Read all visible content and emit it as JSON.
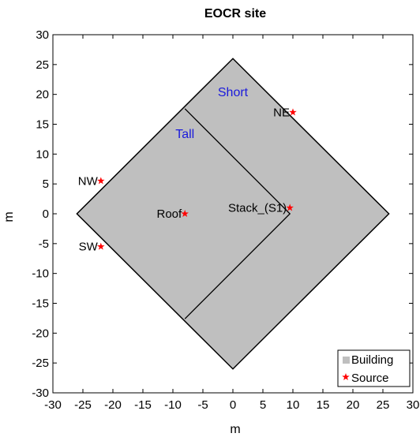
{
  "chart_data": {
    "type": "scatter",
    "title": "EOCR site",
    "xlabel": "m",
    "ylabel": "m",
    "xlim": [
      -30,
      30
    ],
    "ylim": [
      -30,
      30
    ],
    "xticks": [
      -30,
      -25,
      -20,
      -15,
      -10,
      -5,
      0,
      5,
      10,
      15,
      20,
      25,
      30
    ],
    "yticks": [
      -30,
      -25,
      -20,
      -15,
      -10,
      -5,
      0,
      5,
      10,
      15,
      20,
      25,
      30
    ],
    "grid": false,
    "building": {
      "outline": [
        [
          0,
          26
        ],
        [
          26,
          0
        ],
        [
          0,
          -26
        ],
        [
          -26,
          0
        ]
      ],
      "divider": [
        [
          -8,
          17.6
        ],
        [
          9.5,
          0
        ],
        [
          -8,
          -17.6
        ]
      ],
      "zones": [
        {
          "label": "Short",
          "x": 0,
          "y": 20.5
        },
        {
          "label": "Tall",
          "x": -8,
          "y": 13.5
        }
      ]
    },
    "sources": [
      {
        "label": "NE",
        "x": 10,
        "y": 17
      },
      {
        "label": "NW",
        "x": -22,
        "y": 5.5
      },
      {
        "label": "Roof",
        "x": -8,
        "y": 0
      },
      {
        "label": "Stack_(S1)",
        "x": 9.5,
        "y": 1
      },
      {
        "label": "SW",
        "x": -22,
        "y": -5.5
      }
    ],
    "legend": {
      "position": "bottom-right",
      "entries": [
        {
          "label": "Building",
          "marker": "square",
          "color": "#bfbfbf"
        },
        {
          "label": "Source",
          "marker": "star",
          "color": "#ff0000"
        }
      ]
    },
    "colors": {
      "building_fill": "#bfbfbf",
      "source_marker": "#ff0000",
      "zone_label": "#1a1adc"
    }
  }
}
